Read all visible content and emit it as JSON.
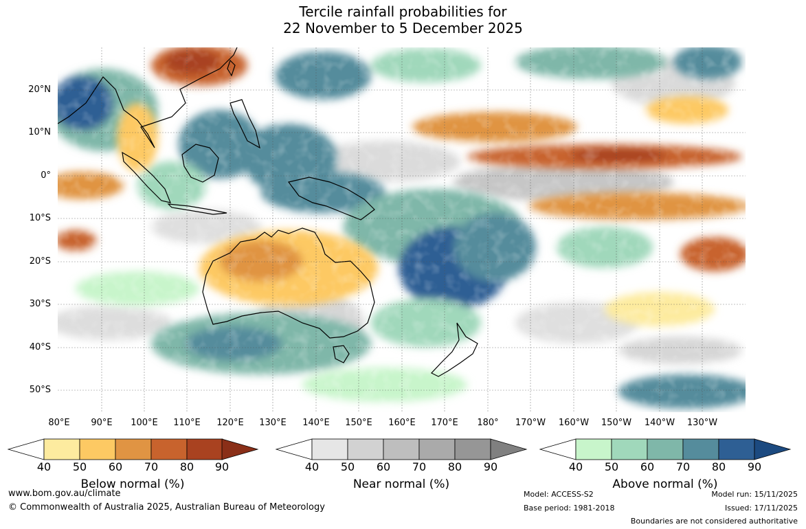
{
  "title": {
    "line1": "Tercile rainfall probabilities for",
    "line2": "22 November to 5 December 2025"
  },
  "map": {
    "lat_labels": [
      "20°N",
      "10°N",
      "0°",
      "10°S",
      "20°S",
      "30°S",
      "40°S",
      "50°S"
    ],
    "lon_labels": [
      "80°E",
      "90°E",
      "100°E",
      "110°E",
      "120°E",
      "130°E",
      "140°E",
      "150°E",
      "160°E",
      "170°E",
      "180°",
      "170°W",
      "160°W",
      "150°W",
      "140°W",
      "130°W"
    ]
  },
  "legend": {
    "ticks": [
      "40",
      "50",
      "60",
      "70",
      "80",
      "90"
    ],
    "below": {
      "title": "Below normal (%)",
      "colors": [
        "#fdeb9f",
        "#fdc963",
        "#e09443",
        "#c8632d",
        "#a94220",
        "#8a2f18"
      ]
    },
    "near": {
      "title": "Near normal (%)",
      "colors": [
        "#e6e6e6",
        "#d2d2d2",
        "#bebebe",
        "#aaaaaa",
        "#969696",
        "#808080"
      ]
    },
    "above": {
      "title": "Above normal (%)",
      "colors": [
        "#c8f5cb",
        "#a0d8bb",
        "#7fb7a9",
        "#558c9c",
        "#2e5f94",
        "#1c4a80"
      ]
    }
  },
  "footer": {
    "url": "www.bom.gov.au/climate",
    "copyright": "© Commonwealth of Australia 2025, Australian Bureau of Meteorology",
    "model": "Model: ACCESS-S2",
    "base_period": "Base period: 1981-2018",
    "model_run": "Model run: 15/11/2025",
    "issued": "Issued: 17/11/2025",
    "boundaries": "Boundaries are not considered authoritative"
  }
}
